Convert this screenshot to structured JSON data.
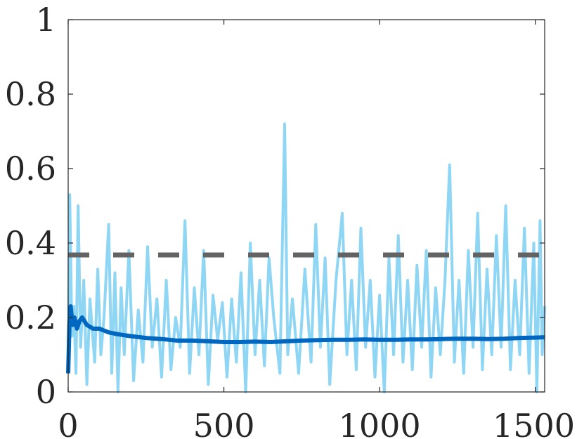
{
  "chart_data": {
    "type": "line",
    "title": "",
    "xlabel": "",
    "ylabel": "",
    "xlim": [
      0,
      1530
    ],
    "ylim": [
      0,
      1
    ],
    "x_ticks": [
      0,
      500,
      1000,
      1500
    ],
    "y_ticks": [
      0,
      0.2,
      0.4,
      0.6,
      0.8,
      1
    ],
    "x_tick_labels": [
      "0",
      "500",
      "1000",
      "1500"
    ],
    "y_tick_labels": [
      "0",
      "0.2",
      "0.4",
      "0.6",
      "0.8",
      "1"
    ],
    "grid": false,
    "box": true,
    "series": [
      {
        "style": "solid-thin",
        "color": "#8fd6f5",
        "points": [
          [
            0,
            0.1
          ],
          [
            5,
            0.53
          ],
          [
            12,
            0.15
          ],
          [
            18,
            0.23
          ],
          [
            25,
            0.05
          ],
          [
            32,
            0.5
          ],
          [
            40,
            0.12
          ],
          [
            50,
            0.3
          ],
          [
            60,
            0.02
          ],
          [
            70,
            0.25
          ],
          [
            85,
            0.08
          ],
          [
            95,
            0.33
          ],
          [
            105,
            0.1
          ],
          [
            115,
            0.2
          ],
          [
            130,
            0.45
          ],
          [
            140,
            0.05
          ],
          [
            150,
            0.32
          ],
          [
            160,
            0.0
          ],
          [
            170,
            0.28
          ],
          [
            180,
            0.1
          ],
          [
            195,
            0.38
          ],
          [
            210,
            0.03
          ],
          [
            225,
            0.22
          ],
          [
            240,
            0.08
          ],
          [
            255,
            0.39
          ],
          [
            270,
            0.12
          ],
          [
            285,
            0.25
          ],
          [
            300,
            0.04
          ],
          [
            315,
            0.3
          ],
          [
            330,
            0.06
          ],
          [
            345,
            0.2
          ],
          [
            360,
            0.12
          ],
          [
            375,
            0.46
          ],
          [
            390,
            0.05
          ],
          [
            405,
            0.28
          ],
          [
            420,
            0.1
          ],
          [
            435,
            0.38
          ],
          [
            450,
            0.02
          ],
          [
            465,
            0.26
          ],
          [
            480,
            0.14
          ],
          [
            495,
            0.24
          ],
          [
            510,
            0.04
          ],
          [
            525,
            0.25
          ],
          [
            540,
            0.08
          ],
          [
            555,
            0.32
          ],
          [
            570,
            0.0
          ],
          [
            585,
            0.4
          ],
          [
            600,
            0.1
          ],
          [
            615,
            0.3
          ],
          [
            630,
            0.07
          ],
          [
            645,
            0.36
          ],
          [
            660,
            0.2
          ],
          [
            680,
            0.05
          ],
          [
            695,
            0.72
          ],
          [
            705,
            0.1
          ],
          [
            720,
            0.25
          ],
          [
            740,
            0.05
          ],
          [
            760,
            0.33
          ],
          [
            780,
            0.08
          ],
          [
            795,
            0.45
          ],
          [
            810,
            0.12
          ],
          [
            825,
            0.36
          ],
          [
            840,
            0.02
          ],
          [
            860,
            0.3
          ],
          [
            880,
            0.48
          ],
          [
            895,
            0.1
          ],
          [
            910,
            0.3
          ],
          [
            925,
            0.06
          ],
          [
            940,
            0.44
          ],
          [
            955,
            0.12
          ],
          [
            970,
            0.3
          ],
          [
            985,
            0.04
          ],
          [
            1000,
            0.26
          ],
          [
            1015,
            0.0
          ],
          [
            1030,
            0.36
          ],
          [
            1045,
            0.1
          ],
          [
            1060,
            0.42
          ],
          [
            1075,
            0.08
          ],
          [
            1090,
            0.3
          ],
          [
            1105,
            0.06
          ],
          [
            1120,
            0.34
          ],
          [
            1135,
            0.12
          ],
          [
            1150,
            0.38
          ],
          [
            1165,
            0.04
          ],
          [
            1180,
            0.28
          ],
          [
            1195,
            0.1
          ],
          [
            1210,
            0.3
          ],
          [
            1225,
            0.61
          ],
          [
            1240,
            0.08
          ],
          [
            1255,
            0.3
          ],
          [
            1270,
            0.05
          ],
          [
            1285,
            0.38
          ],
          [
            1300,
            0.12
          ],
          [
            1315,
            0.48
          ],
          [
            1330,
            0.06
          ],
          [
            1345,
            0.33
          ],
          [
            1360,
            0.1
          ],
          [
            1375,
            0.42
          ],
          [
            1390,
            0.12
          ],
          [
            1405,
            0.5
          ],
          [
            1420,
            0.06
          ],
          [
            1435,
            0.3
          ],
          [
            1450,
            0.1
          ],
          [
            1465,
            0.44
          ],
          [
            1480,
            0.05
          ],
          [
            1495,
            0.4
          ],
          [
            1505,
            0.0
          ],
          [
            1515,
            0.46
          ],
          [
            1522,
            0.1
          ],
          [
            1530,
            0.23
          ]
        ]
      },
      {
        "style": "solid-thick",
        "color": "#0067c0",
        "points": [
          [
            0,
            0.05
          ],
          [
            4,
            0.18
          ],
          [
            8,
            0.23
          ],
          [
            14,
            0.18
          ],
          [
            20,
            0.2
          ],
          [
            28,
            0.17
          ],
          [
            36,
            0.19
          ],
          [
            45,
            0.2
          ],
          [
            60,
            0.18
          ],
          [
            80,
            0.17
          ],
          [
            100,
            0.17
          ],
          [
            130,
            0.16
          ],
          [
            160,
            0.155
          ],
          [
            200,
            0.15
          ],
          [
            250,
            0.145
          ],
          [
            300,
            0.142
          ],
          [
            350,
            0.138
          ],
          [
            400,
            0.138
          ],
          [
            450,
            0.136
          ],
          [
            500,
            0.134
          ],
          [
            550,
            0.134
          ],
          [
            600,
            0.135
          ],
          [
            650,
            0.134
          ],
          [
            700,
            0.136
          ],
          [
            750,
            0.138
          ],
          [
            800,
            0.139
          ],
          [
            850,
            0.14
          ],
          [
            900,
            0.14
          ],
          [
            950,
            0.141
          ],
          [
            1000,
            0.14
          ],
          [
            1050,
            0.14
          ],
          [
            1100,
            0.141
          ],
          [
            1150,
            0.141
          ],
          [
            1200,
            0.142
          ],
          [
            1250,
            0.143
          ],
          [
            1300,
            0.143
          ],
          [
            1350,
            0.142
          ],
          [
            1400,
            0.143
          ],
          [
            1450,
            0.145
          ],
          [
            1500,
            0.146
          ],
          [
            1530,
            0.147
          ]
        ]
      },
      {
        "style": "dashed-thick",
        "color": "#636363",
        "points": [
          [
            0,
            0.368
          ],
          [
            1530,
            0.368
          ]
        ]
      }
    ]
  }
}
